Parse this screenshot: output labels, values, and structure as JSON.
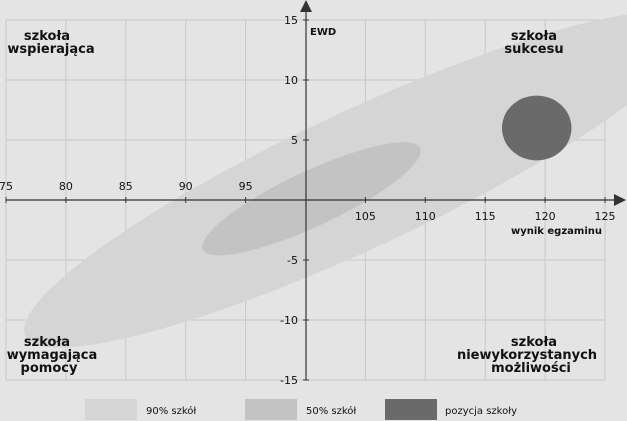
{
  "chart_data": {
    "type": "scatter",
    "xlabel": "wynik egzaminu",
    "ylabel": "EWD",
    "xlim": [
      75,
      125
    ],
    "ylim": [
      -15,
      15
    ],
    "x_ticks": [
      75,
      80,
      85,
      90,
      95,
      105,
      110,
      115,
      120,
      125
    ],
    "y_ticks": [
      15,
      10,
      5,
      -5,
      -10,
      -15
    ],
    "grid": true,
    "legend_position": "bottom",
    "colors": {
      "background": "#e4e4e4",
      "grid": "#c8c8c8",
      "ellipse_90": "#d5d5d5",
      "ellipse_50": "#c3c3c3",
      "school": "#6a6a6a"
    },
    "ellipses": [
      {
        "key": "ellipse_90",
        "cx": 104.5,
        "cy": 1.7,
        "semi_major": 30.8,
        "semi_minor": 5.7,
        "angle_deg": 25
      },
      {
        "key": "ellipse_50",
        "cx": 100.5,
        "cy": 0.1,
        "semi_major": 10.0,
        "semi_minor": 2.3,
        "angle_deg": 25
      },
      {
        "key": "school",
        "cx": 119.3,
        "cy": 6.0,
        "semi_major": 2.9,
        "semi_minor": 2.7,
        "angle_deg": 0
      }
    ],
    "quadrants": {
      "top_left": [
        "szkoła",
        "wspierająca"
      ],
      "top_right": [
        "szkoła",
        "sukcesu"
      ],
      "bottom_left": [
        "szkoła",
        "wymagająca",
        "pomocy"
      ],
      "bottom_right": [
        "szkoła",
        "niewykorzystanych",
        "możliwości"
      ]
    },
    "legend": [
      {
        "label": "90% szkół",
        "color": "#d5d5d5"
      },
      {
        "label": "50% szkół",
        "color": "#c3c3c3"
      },
      {
        "label": "pozycja szkoły",
        "color": "#6a6a6a"
      }
    ]
  }
}
